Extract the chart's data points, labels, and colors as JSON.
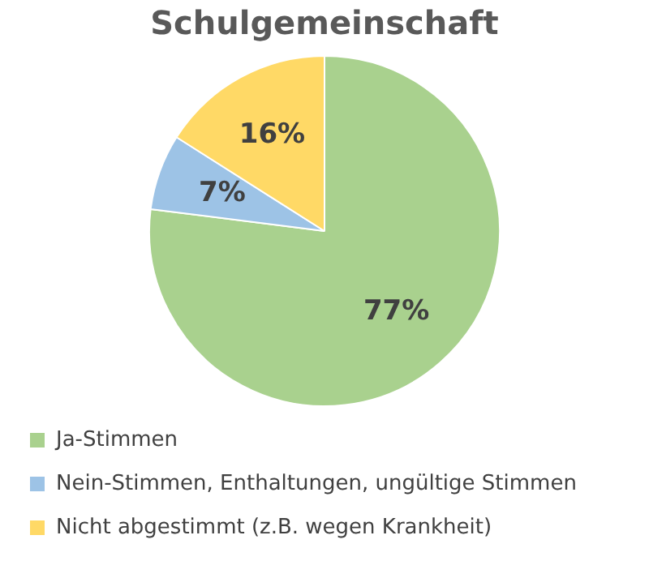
{
  "chart_data": {
    "type": "pie",
    "title": "Schulgemeinschaft",
    "categories": [
      "Ja-Stimmen",
      "Nein-Stimmen, Enthaltungen, ungültige Stimmen",
      "Nicht abgestimmt (z.B. wegen Krankheit)"
    ],
    "values": [
      77,
      7,
      16
    ],
    "colors": [
      "#a9d18e",
      "#9dc3e6",
      "#ffd966"
    ],
    "value_labels": [
      "77%",
      "7%",
      "16%"
    ],
    "legend": "bottom"
  }
}
